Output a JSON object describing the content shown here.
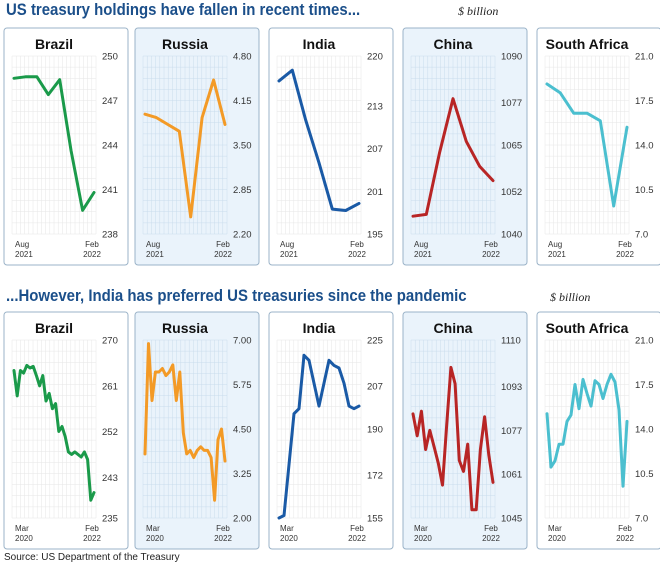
{
  "header": {
    "title_top": "US treasury holdings have fallen in recent times...",
    "unit_top": "$ billion",
    "title_bottom": "...However, India has preferred US treasuries since the pandemic",
    "unit_bottom": "$ billion"
  },
  "footer": {
    "source": "Source: US Department of the Treasury"
  },
  "colors": {
    "Brazil": "#1a9a4a",
    "Russia": "#f39a26",
    "India": "#1a5aa6",
    "China": "#b82525",
    "South Africa": "#4bbfcf"
  },
  "chart_data": [
    {
      "type": "line",
      "row": "top",
      "title": "Brazil",
      "x_labels": [
        "Aug\n2021",
        "Feb\n2022"
      ],
      "y_ticks": [
        250,
        247,
        244,
        241,
        238
      ],
      "ylim": [
        238,
        250
      ],
      "values": [
        248.5,
        248.6,
        248.6,
        247.4,
        248.4,
        243.6,
        239.6,
        240.8
      ]
    },
    {
      "type": "line",
      "row": "top",
      "title": "Russia",
      "x_labels": [
        "Aug\n2021",
        "Feb\n2022"
      ],
      "y_ticks": [
        4.8,
        4.15,
        3.5,
        2.85,
        2.2
      ],
      "ylim": [
        2.2,
        4.8
      ],
      "values": [
        3.95,
        3.9,
        3.8,
        3.7,
        2.45,
        3.9,
        4.45,
        3.8
      ]
    },
    {
      "type": "line",
      "row": "top",
      "title": "India",
      "x_labels": [
        "Aug\n2021",
        "Feb\n2022"
      ],
      "y_ticks": [
        220,
        213,
        207,
        201,
        195
      ],
      "ylim": [
        195,
        220
      ],
      "values": [
        216.5,
        218.0,
        211.0,
        205.0,
        198.5,
        198.3,
        199.3
      ]
    },
    {
      "type": "line",
      "row": "top",
      "title": "China",
      "x_labels": [
        "Aug\n2021",
        "Feb\n2022"
      ],
      "y_ticks": [
        1090,
        1077,
        1065,
        1052,
        1040
      ],
      "ylim": [
        1040,
        1090
      ],
      "values": [
        1045.0,
        1045.5,
        1063.0,
        1078.0,
        1066.0,
        1059.0,
        1055.0
      ]
    },
    {
      "type": "line",
      "row": "top",
      "title": "South Africa",
      "x_labels": [
        "Aug\n2021",
        "Feb\n2022"
      ],
      "y_ticks": [
        21.0,
        17.5,
        14.0,
        10.5,
        7.0
      ],
      "ylim": [
        7.0,
        21.0
      ],
      "values": [
        18.8,
        18.1,
        16.5,
        16.5,
        15.9,
        9.2,
        15.4
      ]
    },
    {
      "type": "line",
      "row": "bottom",
      "title": "Brazil",
      "x_labels": [
        "Mar\n2020",
        "Feb\n2022"
      ],
      "y_ticks": [
        270,
        261,
        252,
        243,
        235
      ],
      "ylim": [
        235,
        270
      ],
      "values": [
        264.0,
        259.0,
        264.0,
        263.5,
        265.0,
        264.5,
        264.8,
        263.0,
        261.0,
        263.0,
        258.0,
        259.5,
        256.5,
        257.5,
        252.0,
        253.0,
        251.0,
        248.0,
        247.5,
        248.0,
        247.5,
        247.0,
        248.0,
        246.5,
        238.5,
        240.0
      ]
    },
    {
      "type": "line",
      "row": "bottom",
      "title": "Russia",
      "x_labels": [
        "Mar\n2020",
        "Feb\n2022"
      ],
      "y_ticks": [
        7.0,
        5.75,
        4.5,
        3.25,
        2.0
      ],
      "ylim": [
        2.0,
        7.0
      ],
      "values": [
        3.8,
        6.9,
        5.3,
        6.1,
        6.1,
        6.2,
        6.0,
        6.1,
        6.3,
        5.3,
        6.1,
        4.4,
        3.8,
        3.9,
        3.7,
        3.9,
        4.0,
        3.9,
        3.9,
        3.7,
        2.5,
        4.2,
        4.5,
        3.6
      ]
    },
    {
      "type": "line",
      "row": "bottom",
      "title": "India",
      "x_labels": [
        "Mar\n2020",
        "Feb\n2022"
      ],
      "y_ticks": [
        225,
        207,
        190,
        172,
        155
      ],
      "ylim": [
        155,
        225
      ],
      "values": [
        155.0,
        156.0,
        176.0,
        196.0,
        198.0,
        219.0,
        217.0,
        208.0,
        199.0,
        208.0,
        217.0,
        215.0,
        214.0,
        208.0,
        199.0,
        198.0,
        199.0
      ]
    },
    {
      "type": "line",
      "row": "bottom",
      "title": "China",
      "x_labels": [
        "Mar\n2020",
        "Feb\n2022"
      ],
      "y_ticks": [
        1110,
        1093,
        1077,
        1061,
        1045
      ],
      "ylim": [
        1045,
        1110
      ],
      "values": [
        1083.0,
        1075.0,
        1084.0,
        1070.0,
        1077.0,
        1071.0,
        1065.0,
        1057.0,
        1079.0,
        1100.0,
        1094.0,
        1066.0,
        1062.0,
        1072.0,
        1048.0,
        1048.0,
        1070.0,
        1082.0,
        1068.0,
        1058.0
      ]
    },
    {
      "type": "line",
      "row": "bottom",
      "title": "South Africa",
      "x_labels": [
        "Mar\n2020",
        "Feb\n2022"
      ],
      "y_ticks": [
        21.0,
        17.5,
        14.0,
        10.5,
        7.0
      ],
      "ylim": [
        7.0,
        21.0
      ],
      "values": [
        15.2,
        11.0,
        11.5,
        12.8,
        12.8,
        14.6,
        15.1,
        17.5,
        15.6,
        17.9,
        16.8,
        15.8,
        17.8,
        17.5,
        16.4,
        17.5,
        18.3,
        17.7,
        15.5,
        9.5,
        14.6
      ]
    }
  ]
}
